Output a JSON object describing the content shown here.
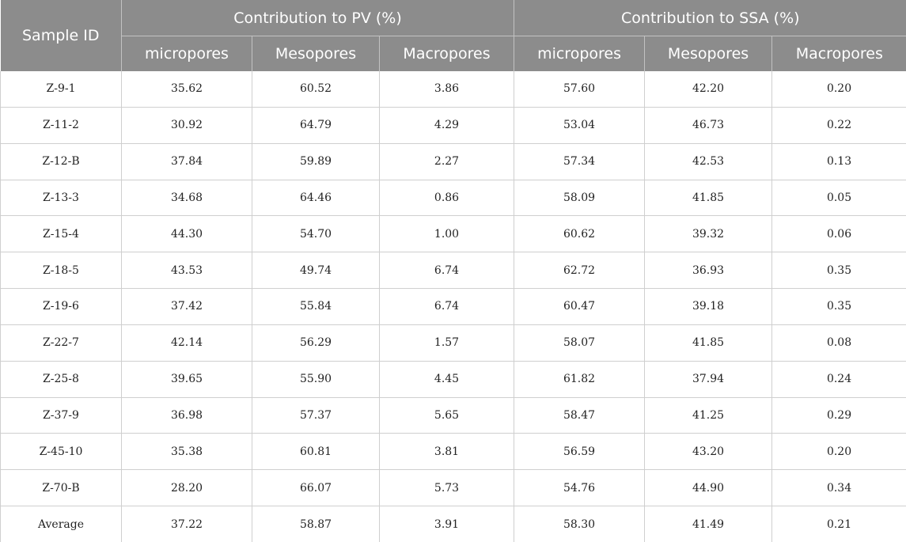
{
  "table": {
    "header": {
      "sample_id": "Sample ID",
      "group_pv": "Contribution to PV (%)",
      "group_ssa": "Contribution to SSA (%)",
      "sub_pv": [
        "micropores",
        "Mesopores",
        "Macropores"
      ],
      "sub_ssa": [
        "micropores",
        "Mesopores",
        "Macropores"
      ]
    },
    "rows": [
      {
        "id": "Z-9-1",
        "pv": [
          "35.62",
          "60.52",
          "3.86"
        ],
        "ssa": [
          "57.60",
          "42.20",
          "0.20"
        ]
      },
      {
        "id": "Z-11-2",
        "pv": [
          "30.92",
          "64.79",
          "4.29"
        ],
        "ssa": [
          "53.04",
          "46.73",
          "0.22"
        ]
      },
      {
        "id": "Z-12-B",
        "pv": [
          "37.84",
          "59.89",
          "2.27"
        ],
        "ssa": [
          "57.34",
          "42.53",
          "0.13"
        ]
      },
      {
        "id": "Z-13-3",
        "pv": [
          "34.68",
          "64.46",
          "0.86"
        ],
        "ssa": [
          "58.09",
          "41.85",
          "0.05"
        ]
      },
      {
        "id": "Z-15-4",
        "pv": [
          "44.30",
          "54.70",
          "1.00"
        ],
        "ssa": [
          "60.62",
          "39.32",
          "0.06"
        ]
      },
      {
        "id": "Z-18-5",
        "pv": [
          "43.53",
          "49.74",
          "6.74"
        ],
        "ssa": [
          "62.72",
          "36.93",
          "0.35"
        ]
      },
      {
        "id": "Z-19-6",
        "pv": [
          "37.42",
          "55.84",
          "6.74"
        ],
        "ssa": [
          "60.47",
          "39.18",
          "0.35"
        ]
      },
      {
        "id": "Z-22-7",
        "pv": [
          "42.14",
          "56.29",
          "1.57"
        ],
        "ssa": [
          "58.07",
          "41.85",
          "0.08"
        ]
      },
      {
        "id": "Z-25-8",
        "pv": [
          "39.65",
          "55.90",
          "4.45"
        ],
        "ssa": [
          "61.82",
          "37.94",
          "0.24"
        ]
      },
      {
        "id": "Z-37-9",
        "pv": [
          "36.98",
          "57.37",
          "5.65"
        ],
        "ssa": [
          "58.47",
          "41.25",
          "0.29"
        ]
      },
      {
        "id": "Z-45-10",
        "pv": [
          "35.38",
          "60.81",
          "3.81"
        ],
        "ssa": [
          "56.59",
          "43.20",
          "0.20"
        ]
      },
      {
        "id": "Z-70-B",
        "pv": [
          "28.20",
          "66.07",
          "5.73"
        ],
        "ssa": [
          "54.76",
          "44.90",
          "0.34"
        ]
      },
      {
        "id": "Average",
        "pv": [
          "37.22",
          "58.87",
          "3.91"
        ],
        "ssa": [
          "58.30",
          "41.49",
          "0.21"
        ]
      }
    ]
  }
}
